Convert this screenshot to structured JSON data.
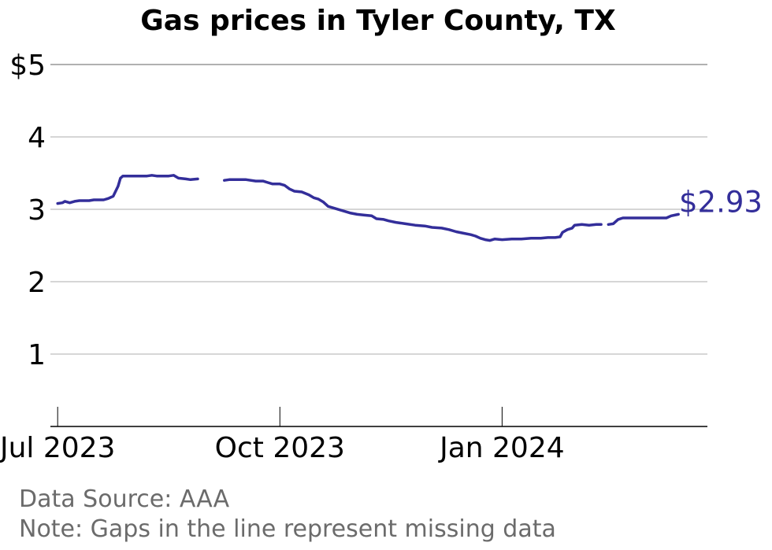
{
  "chart_data": {
    "type": "line",
    "title": "Gas prices in Tyler County, TX",
    "xlabel": "",
    "ylabel": "",
    "ylim": [
      0,
      5
    ],
    "yticks": [
      {
        "value": 1,
        "label": "1"
      },
      {
        "value": 2,
        "label": "2"
      },
      {
        "value": 3,
        "label": "3"
      },
      {
        "value": 4,
        "label": "4"
      },
      {
        "value": 5,
        "label": "$5"
      }
    ],
    "xlim": [
      "2023-06-28",
      "2024-03-26"
    ],
    "xticks": [
      {
        "date": "2023-07-01",
        "label": "Jul 2023"
      },
      {
        "date": "2023-10-01",
        "label": "Oct 2023"
      },
      {
        "date": "2024-01-01",
        "label": "Jan 2024"
      }
    ],
    "grid": "horizontal",
    "line_color": "#332E9A",
    "end_label": "$2.93",
    "series": [
      {
        "segments": [
          [
            [
              "2023-07-01",
              3.08
            ],
            [
              "2023-07-03",
              3.09
            ],
            [
              "2023-07-04",
              3.11
            ],
            [
              "2023-07-06",
              3.09
            ],
            [
              "2023-07-08",
              3.11
            ],
            [
              "2023-07-10",
              3.12
            ],
            [
              "2023-07-14",
              3.12
            ],
            [
              "2023-07-16",
              3.13
            ],
            [
              "2023-07-20",
              3.13
            ],
            [
              "2023-07-22",
              3.15
            ],
            [
              "2023-07-24",
              3.18
            ],
            [
              "2023-07-25",
              3.25
            ],
            [
              "2023-07-26",
              3.32
            ],
            [
              "2023-07-27",
              3.43
            ],
            [
              "2023-07-28",
              3.46
            ],
            [
              "2023-08-01",
              3.46
            ],
            [
              "2023-08-04",
              3.46
            ],
            [
              "2023-08-07",
              3.46
            ],
            [
              "2023-08-09",
              3.47
            ],
            [
              "2023-08-11",
              3.46
            ],
            [
              "2023-08-13",
              3.46
            ],
            [
              "2023-08-16",
              3.46
            ],
            [
              "2023-08-18",
              3.47
            ],
            [
              "2023-08-20",
              3.43
            ],
            [
              "2023-08-23",
              3.42
            ],
            [
              "2023-08-25",
              3.41
            ],
            [
              "2023-08-28",
              3.42
            ]
          ],
          [
            [
              "2023-09-08",
              3.4
            ],
            [
              "2023-09-10",
              3.41
            ],
            [
              "2023-09-14",
              3.41
            ],
            [
              "2023-09-17",
              3.41
            ],
            [
              "2023-09-21",
              3.39
            ],
            [
              "2023-09-24",
              3.39
            ],
            [
              "2023-09-26",
              3.37
            ],
            [
              "2023-09-28",
              3.35
            ],
            [
              "2023-10-01",
              3.35
            ],
            [
              "2023-10-03",
              3.33
            ],
            [
              "2023-10-05",
              3.28
            ],
            [
              "2023-10-07",
              3.25
            ],
            [
              "2023-10-10",
              3.24
            ],
            [
              "2023-10-13",
              3.2
            ],
            [
              "2023-10-15",
              3.16
            ],
            [
              "2023-10-17",
              3.14
            ],
            [
              "2023-10-19",
              3.1
            ],
            [
              "2023-10-21",
              3.04
            ],
            [
              "2023-10-24",
              3.01
            ],
            [
              "2023-10-27",
              2.98
            ],
            [
              "2023-10-30",
              2.95
            ],
            [
              "2023-11-02",
              2.93
            ],
            [
              "2023-11-05",
              2.92
            ],
            [
              "2023-11-08",
              2.91
            ],
            [
              "2023-11-10",
              2.87
            ],
            [
              "2023-11-13",
              2.86
            ],
            [
              "2023-11-15",
              2.84
            ],
            [
              "2023-11-18",
              2.82
            ],
            [
              "2023-11-22",
              2.8
            ],
            [
              "2023-11-26",
              2.78
            ],
            [
              "2023-11-30",
              2.77
            ],
            [
              "2023-12-03",
              2.75
            ],
            [
              "2023-12-07",
              2.74
            ],
            [
              "2023-12-10",
              2.72
            ],
            [
              "2023-12-13",
              2.69
            ],
            [
              "2023-12-16",
              2.67
            ],
            [
              "2023-12-19",
              2.65
            ],
            [
              "2023-12-21",
              2.63
            ],
            [
              "2023-12-23",
              2.6
            ],
            [
              "2023-12-25",
              2.58
            ],
            [
              "2023-12-27",
              2.57
            ],
            [
              "2023-12-29",
              2.59
            ],
            [
              "2024-01-01",
              2.58
            ],
            [
              "2024-01-05",
              2.59
            ],
            [
              "2024-01-09",
              2.59
            ],
            [
              "2024-01-13",
              2.6
            ],
            [
              "2024-01-17",
              2.6
            ],
            [
              "2024-01-20",
              2.61
            ],
            [
              "2024-01-23",
              2.61
            ],
            [
              "2024-01-25",
              2.62
            ],
            [
              "2024-01-26",
              2.68
            ],
            [
              "2024-01-28",
              2.72
            ],
            [
              "2024-01-30",
              2.74
            ],
            [
              "2024-01-31",
              2.78
            ],
            [
              "2024-02-03",
              2.79
            ],
            [
              "2024-02-06",
              2.78
            ],
            [
              "2024-02-09",
              2.79
            ],
            [
              "2024-02-11",
              2.79
            ]
          ],
          [
            [
              "2024-02-14",
              2.79
            ],
            [
              "2024-02-16",
              2.8
            ],
            [
              "2024-02-18",
              2.86
            ],
            [
              "2024-02-20",
              2.88
            ],
            [
              "2024-02-24",
              2.88
            ],
            [
              "2024-02-28",
              2.88
            ],
            [
              "2024-03-03",
              2.88
            ],
            [
              "2024-03-06",
              2.88
            ],
            [
              "2024-03-09",
              2.88
            ],
            [
              "2024-03-11",
              2.91
            ],
            [
              "2024-03-14",
              2.93
            ]
          ]
        ]
      }
    ]
  },
  "footer": {
    "source": "Data Source: AAA",
    "note": "Note: Gaps in the line represent missing data"
  }
}
